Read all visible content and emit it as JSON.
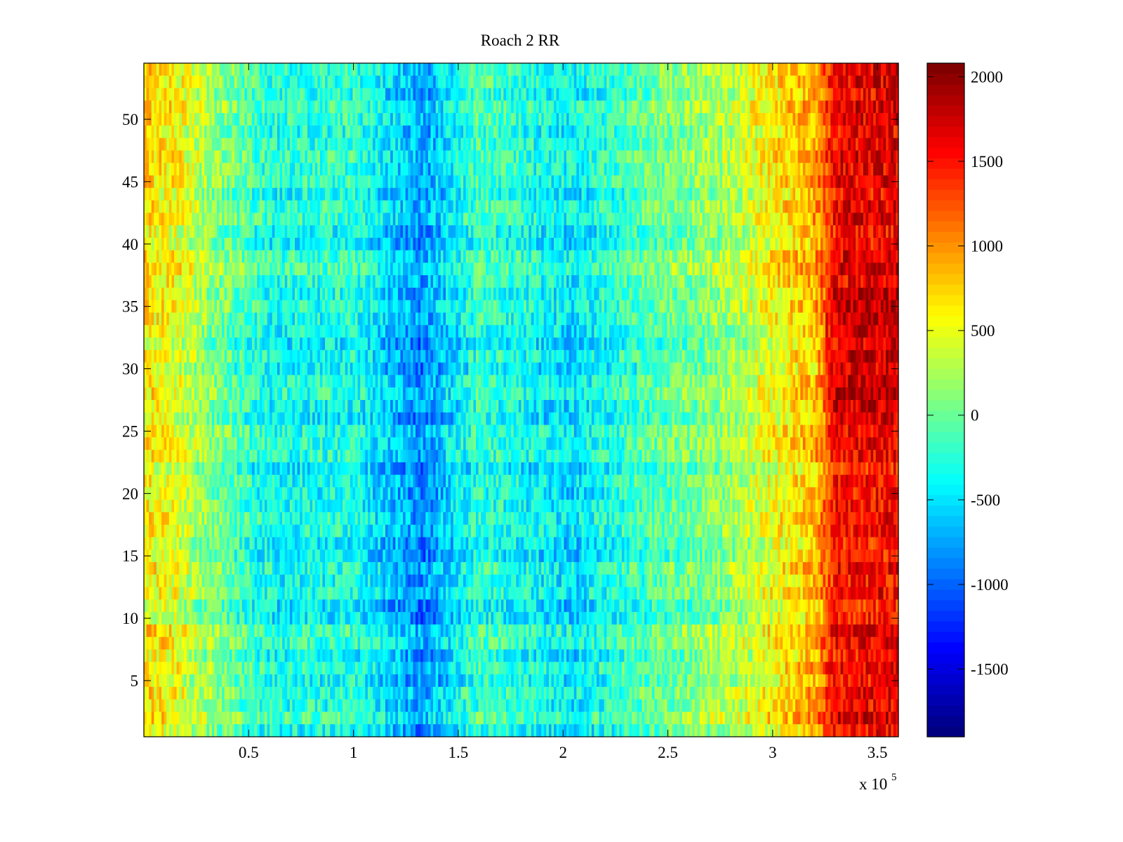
{
  "chart_data": {
    "type": "heatmap",
    "title": "Roach 2 RR",
    "xlabel": "",
    "ylabel": "",
    "x_range": [
      0,
      360000
    ],
    "y_range": [
      0.5,
      54.5
    ],
    "x_ticks": [
      50000,
      100000,
      150000,
      200000,
      250000,
      300000,
      350000
    ],
    "x_tick_labels": [
      "0.5",
      "1",
      "1.5",
      "2",
      "2.5",
      "3",
      "3.5"
    ],
    "x_exponent_label": "x 10",
    "x_exponent_power": "5",
    "y_ticks": [
      5,
      10,
      15,
      20,
      25,
      30,
      35,
      40,
      45,
      50
    ],
    "y_tick_labels": [
      "5",
      "10",
      "15",
      "20",
      "25",
      "30",
      "35",
      "40",
      "45",
      "50"
    ],
    "rows": 54,
    "colormap": "jet",
    "colorbar": {
      "range": [
        -1900,
        2080
      ],
      "ticks": [
        -1500,
        -1000,
        -500,
        0,
        500,
        1000,
        1500,
        2000
      ],
      "tick_labels": [
        "-1500",
        "-1000",
        "-500",
        "0",
        "500",
        "1000",
        "1500",
        "2000"
      ]
    },
    "value_profile_by_x": [
      {
        "x": 0,
        "value": 600
      },
      {
        "x": 15000,
        "value": 450
      },
      {
        "x": 30000,
        "value": 100
      },
      {
        "x": 60000,
        "value": -400
      },
      {
        "x": 100000,
        "value": -350
      },
      {
        "x": 133000,
        "value": -900
      },
      {
        "x": 160000,
        "value": -250
      },
      {
        "x": 205000,
        "value": -550
      },
      {
        "x": 240000,
        "value": -150
      },
      {
        "x": 280000,
        "value": 150
      },
      {
        "x": 300000,
        "value": 500
      },
      {
        "x": 320000,
        "value": 800
      },
      {
        "x": 330000,
        "value": 1500
      },
      {
        "x": 360000,
        "value": 1550
      }
    ],
    "notes": "Strong high band (~1500-2000) for x > 3.25e5, low band near x = 1.33e5 and 2.05e5"
  }
}
